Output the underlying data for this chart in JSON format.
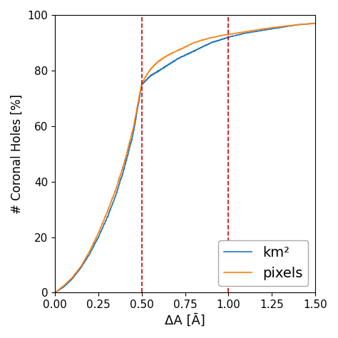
{
  "xlabel": "ΔA [Ā]",
  "ylabel": "# Coronal Holes [%]",
  "xlim": [
    0.0,
    1.5
  ],
  "ylim": [
    0,
    100
  ],
  "xticks": [
    0.0,
    0.25,
    0.5,
    0.75,
    1.0,
    1.25,
    1.5
  ],
  "yticks": [
    0,
    20,
    40,
    60,
    80,
    100
  ],
  "vlines": [
    0.5,
    1.0
  ],
  "vline_color": "#cc0000",
  "vline_style": "--",
  "line_km2_color": "#1f77b4",
  "line_pixels_color": "#ff7f0e",
  "legend_labels": [
    "km²",
    "pixels"
  ],
  "legend_fontsize": 14,
  "figsize": [
    4.74,
    4.74
  ],
  "dpi": 100,
  "km2_keypoints_x": [
    0.0,
    0.05,
    0.1,
    0.15,
    0.2,
    0.25,
    0.3,
    0.35,
    0.4,
    0.45,
    0.5,
    0.55,
    0.6,
    0.65,
    0.7,
    0.75,
    0.8,
    0.85,
    0.9,
    0.95,
    1.0,
    1.1,
    1.2,
    1.3,
    1.4,
    1.5
  ],
  "km2_keypoints_y": [
    0.0,
    2.0,
    5.0,
    9.0,
    14.0,
    20.0,
    27.0,
    35.0,
    45.0,
    57.0,
    75.0,
    78.0,
    80.0,
    82.0,
    84.0,
    85.5,
    87.0,
    88.5,
    90.0,
    91.0,
    92.0,
    93.5,
    94.5,
    95.5,
    96.5,
    97.0
  ],
  "pix_keypoints_x": [
    0.0,
    0.05,
    0.1,
    0.15,
    0.2,
    0.25,
    0.3,
    0.35,
    0.4,
    0.45,
    0.5,
    0.55,
    0.6,
    0.65,
    0.7,
    0.75,
    0.8,
    0.85,
    0.9,
    0.95,
    1.0,
    1.1,
    1.2,
    1.3,
    1.4,
    1.5
  ],
  "pix_keypoints_y": [
    0.0,
    2.5,
    5.5,
    9.5,
    15.0,
    21.5,
    29.0,
    37.0,
    47.0,
    59.0,
    75.5,
    80.5,
    83.5,
    85.5,
    87.0,
    88.5,
    90.0,
    91.0,
    91.8,
    92.5,
    93.0,
    94.0,
    95.0,
    95.8,
    96.5,
    97.0
  ]
}
